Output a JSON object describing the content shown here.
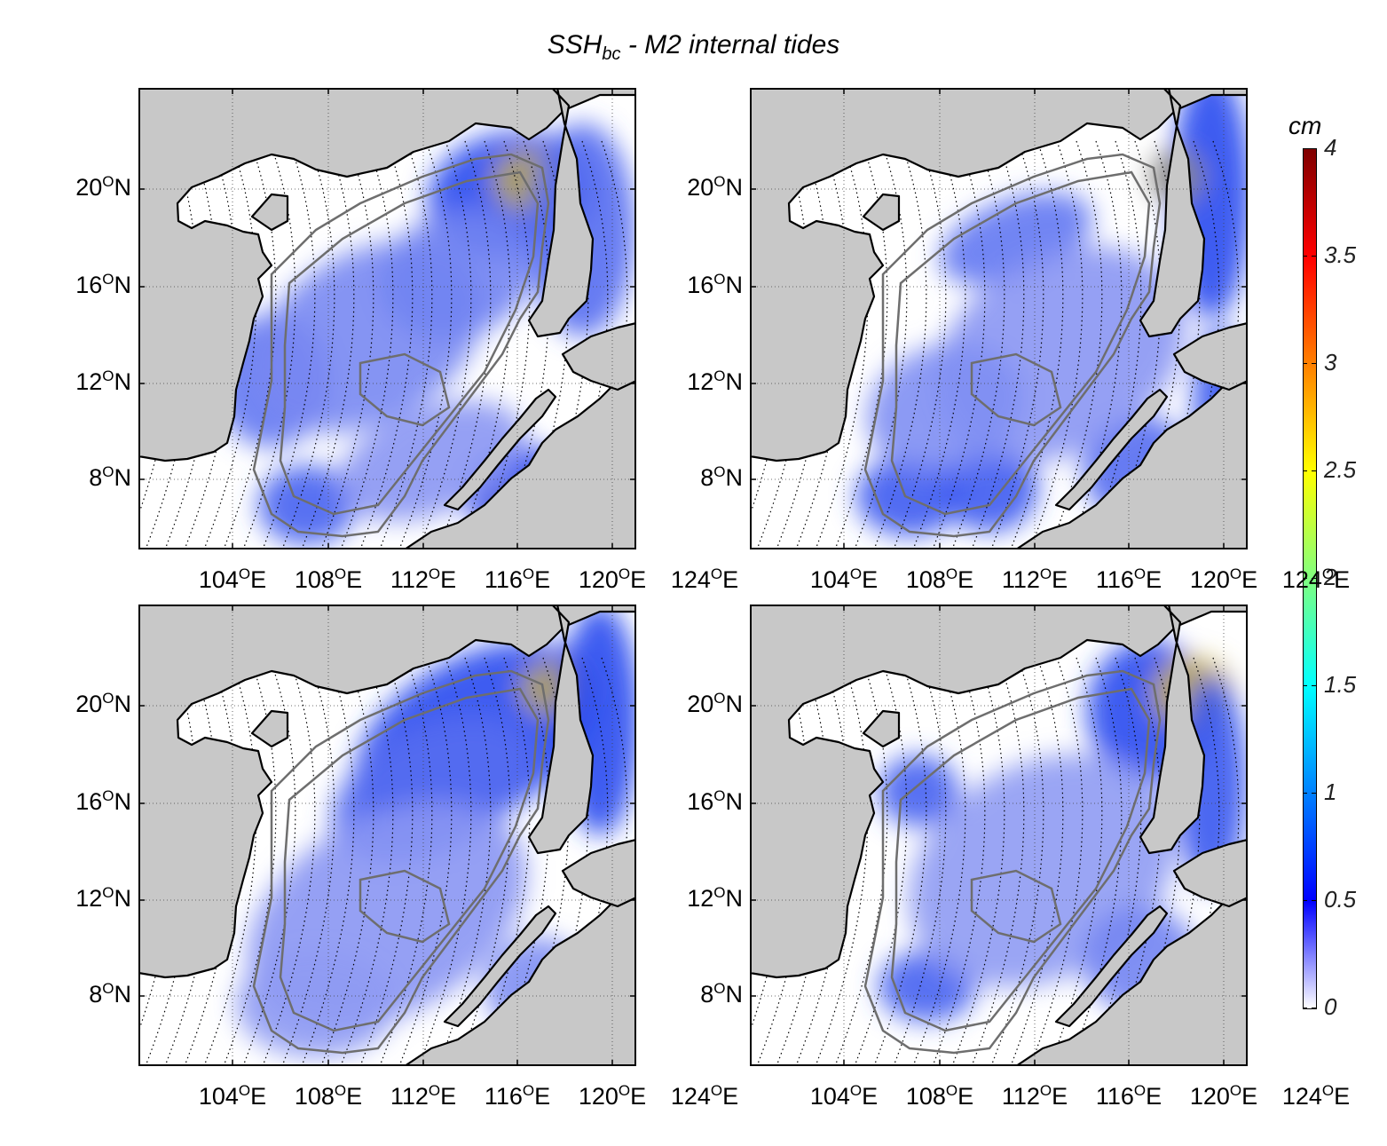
{
  "figure": {
    "title_main": "SSH",
    "title_sub": "bc",
    "title_rest": " - M2 internal tides"
  },
  "axes": {
    "lon_ticks": [
      "104",
      "108",
      "112",
      "116",
      "120",
      "124"
    ],
    "lon_unit": "E",
    "lat_ticks": [
      "20",
      "16",
      "12",
      "8"
    ],
    "lat_unit": "N",
    "degree_mark": "O"
  },
  "colorbar": {
    "unit": "cm",
    "ticks": [
      "4",
      "3.5",
      "3",
      "2.5",
      "2",
      "1.5",
      "1",
      "0.5",
      "0"
    ],
    "colors": [
      "#7f0000",
      "#ff0000",
      "#ff8000",
      "#ffff00",
      "#80ff80",
      "#00ffff",
      "#0080ff",
      "#0000ff",
      "#ffffff"
    ]
  },
  "colors": {
    "land": "#c8c8c8",
    "coast": "#000000",
    "isobath": "#6e6e6e",
    "field_low": "#c8c8f5",
    "field_mid": "#2a4bf0",
    "field_high": "#ffd400"
  },
  "panels": [
    {
      "name": "top-left"
    },
    {
      "name": "top-right"
    },
    {
      "name": "bottom-left"
    },
    {
      "name": "bottom-right"
    }
  ]
}
